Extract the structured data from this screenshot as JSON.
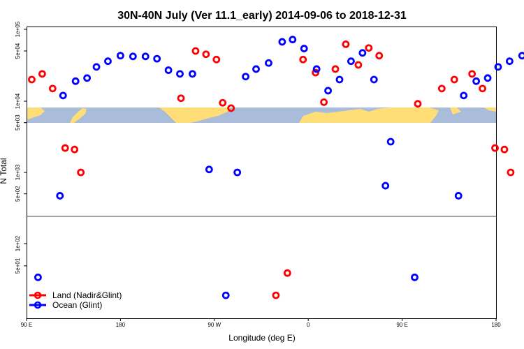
{
  "chart_data": {
    "type": "scatter",
    "title": "30N-40N July (Ver 11.1_early)   2014-09-06 to 2018-12-31",
    "xlabel": "Longitude (deg E)",
    "ylabel": "N Total",
    "x_ticks": [
      {
        "value": 90,
        "label": "90 E"
      },
      {
        "value": 180,
        "label": "180"
      },
      {
        "value": 270,
        "label": "90 W"
      },
      {
        "value": 360,
        "label": "0"
      },
      {
        "value": 450,
        "label": "90 E"
      },
      {
        "value": 540,
        "label": "180"
      }
    ],
    "x_range": [
      90,
      540
    ],
    "y_ticks": [
      {
        "value": 100000,
        "label": "1e+05"
      },
      {
        "value": 50000,
        "label": "5e+04"
      },
      {
        "value": 10000,
        "label": "1e+04"
      },
      {
        "value": 5000,
        "label": "5e+03"
      },
      {
        "value": 1000,
        "label": "1e+03"
      },
      {
        "value": 500,
        "label": "5e+02"
      },
      {
        "value": 100,
        "label": "1e+02"
      },
      {
        "value": 50,
        "label": "5e+01"
      }
    ],
    "colors": {
      "land": "#ff0000",
      "ocean": "#0000ff",
      "map_land": "#ffdd77",
      "map_ocean": "#a9bcd9"
    },
    "series": [
      {
        "name": "Land (Nadir&Glint)",
        "color": "#ff0000",
        "points": [
          [
            95,
            20000
          ],
          [
            105,
            24000
          ],
          [
            115,
            15000
          ],
          [
            127,
            2200
          ],
          [
            136,
            2100
          ],
          [
            142,
            1000
          ],
          [
            238,
            11000
          ],
          [
            252,
            50000
          ],
          [
            262,
            45000
          ],
          [
            272,
            38000
          ],
          [
            278,
            9500
          ],
          [
            286,
            8000
          ],
          [
            329,
            20
          ],
          [
            340,
            40
          ],
          [
            355,
            38000
          ],
          [
            367,
            25000
          ],
          [
            375,
            9700
          ],
          [
            386,
            28000
          ],
          [
            396,
            62000
          ],
          [
            408,
            32000
          ],
          [
            418,
            55000
          ],
          [
            428,
            43000
          ],
          [
            465,
            9200
          ],
          [
            488,
            15000
          ],
          [
            500,
            20000
          ],
          [
            517,
            24000
          ],
          [
            527,
            15000
          ],
          [
            539,
            2200
          ],
          [
            548,
            2100
          ],
          [
            554,
            1000
          ]
        ]
      },
      {
        "name": "Ocean (Glint)",
        "color": "#0000ff",
        "points": [
          [
            101,
            35
          ],
          [
            122,
            470
          ],
          [
            125,
            12000
          ],
          [
            137,
            19000
          ],
          [
            148,
            21000
          ],
          [
            157,
            30000
          ],
          [
            168,
            36000
          ],
          [
            180,
            43000
          ],
          [
            192,
            42000
          ],
          [
            204,
            42000
          ],
          [
            215,
            39000
          ],
          [
            226,
            27000
          ],
          [
            237,
            24000
          ],
          [
            249,
            24000
          ],
          [
            265,
            1100
          ],
          [
            281,
            20
          ],
          [
            292,
            1000
          ],
          [
            300,
            22000
          ],
          [
            310,
            28000
          ],
          [
            322,
            34000
          ],
          [
            335,
            67000
          ],
          [
            345,
            72000
          ],
          [
            356,
            54000
          ],
          [
            368,
            28000
          ],
          [
            379,
            14000
          ],
          [
            390,
            20000
          ],
          [
            401,
            36000
          ],
          [
            412,
            47000
          ],
          [
            423,
            20000
          ],
          [
            434,
            650
          ],
          [
            439,
            2700
          ],
          [
            462,
            35
          ],
          [
            504,
            470
          ],
          [
            509,
            12000
          ],
          [
            521,
            19000
          ],
          [
            532,
            21000
          ],
          [
            542,
            30000
          ],
          [
            553,
            36000
          ],
          [
            565,
            43000
          ]
        ]
      }
    ]
  }
}
